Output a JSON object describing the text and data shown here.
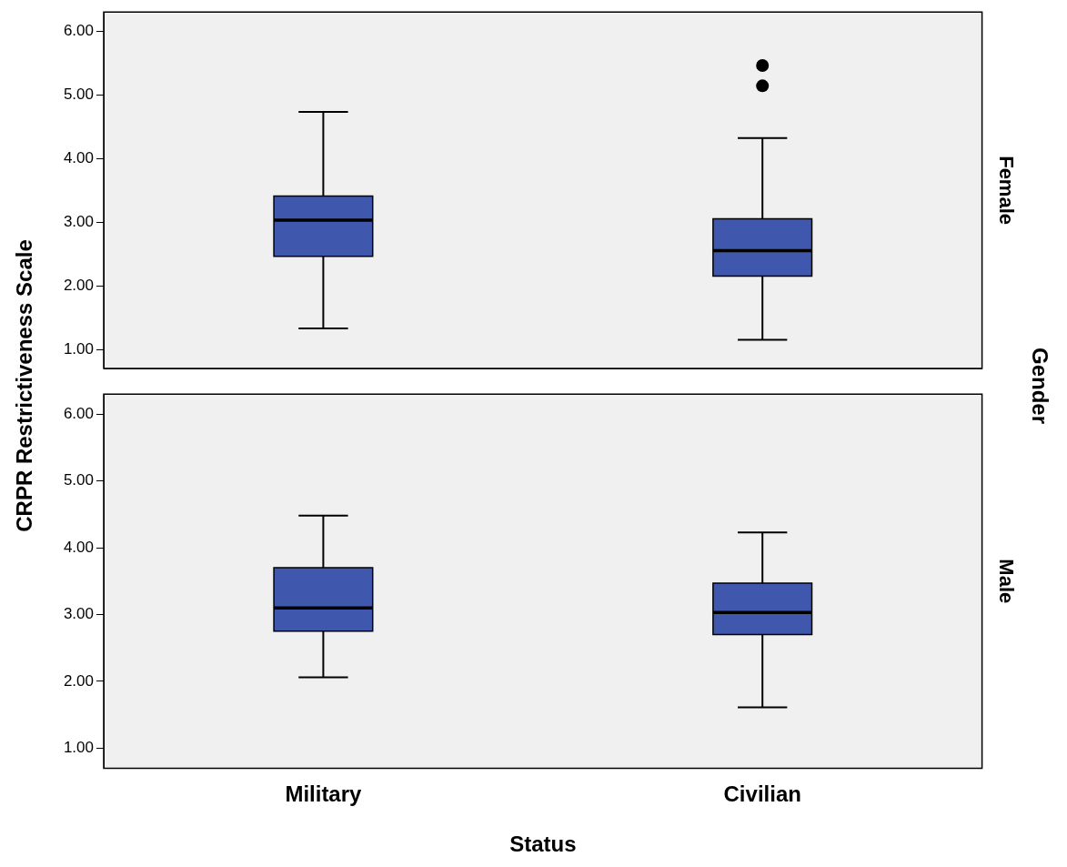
{
  "chart_data": [
    {
      "type": "box",
      "y2label": "Female",
      "ylabel": "CRPR Restrictiveness Scale",
      "annotations": [
        "Gender"
      ],
      "categories": [
        null,
        null
      ],
      "color": "#3f57ac",
      "tick_labels": "y",
      "grid": false,
      "legend": false,
      "boxes": [
        {
          "low": 1.33,
          "q1": 2.46,
          "median": 3.03,
          "q3": 3.41,
          "high": 4.73
        },
        {
          "low": 1.15,
          "q1": 2.15,
          "median": 2.55,
          "q3": 3.05,
          "high": 4.32,
          "outliers": [
            5.14,
            5.46
          ]
        }
      ],
      "ylim": [
        0.7,
        6.3
      ],
      "yticks": [
        {
          "value": 1,
          "label": "1.00"
        },
        {
          "value": 2,
          "label": "2.00"
        },
        {
          "value": 3,
          "label": "3.00"
        },
        {
          "value": 4,
          "label": "4.00"
        },
        {
          "value": 5,
          "label": "5.00"
        },
        {
          "value": 6,
          "label": "6.00"
        }
      ]
    },
    {
      "type": "box",
      "y2label": "Male",
      "xlabel": "Status",
      "categories": [
        "Military",
        "Civilian"
      ],
      "color": "#3f57ac",
      "grid": false,
      "legend": false,
      "boxes": [
        {
          "low": 2.06,
          "q1": 2.75,
          "median": 3.1,
          "q3": 3.7,
          "high": 4.48
        },
        {
          "low": 1.61,
          "q1": 2.7,
          "median": 3.03,
          "q3": 3.47,
          "high": 4.23
        }
      ],
      "ylim": [
        0.7,
        6.3
      ],
      "yticks": [
        {
          "value": 1,
          "label": "1.00"
        },
        {
          "value": 2,
          "label": "2.00"
        },
        {
          "value": 3,
          "label": "3.00"
        },
        {
          "value": 4,
          "label": "4.00"
        },
        {
          "value": 5,
          "label": "5.00"
        },
        {
          "value": 6,
          "label": "6.00"
        }
      ]
    }
  ]
}
